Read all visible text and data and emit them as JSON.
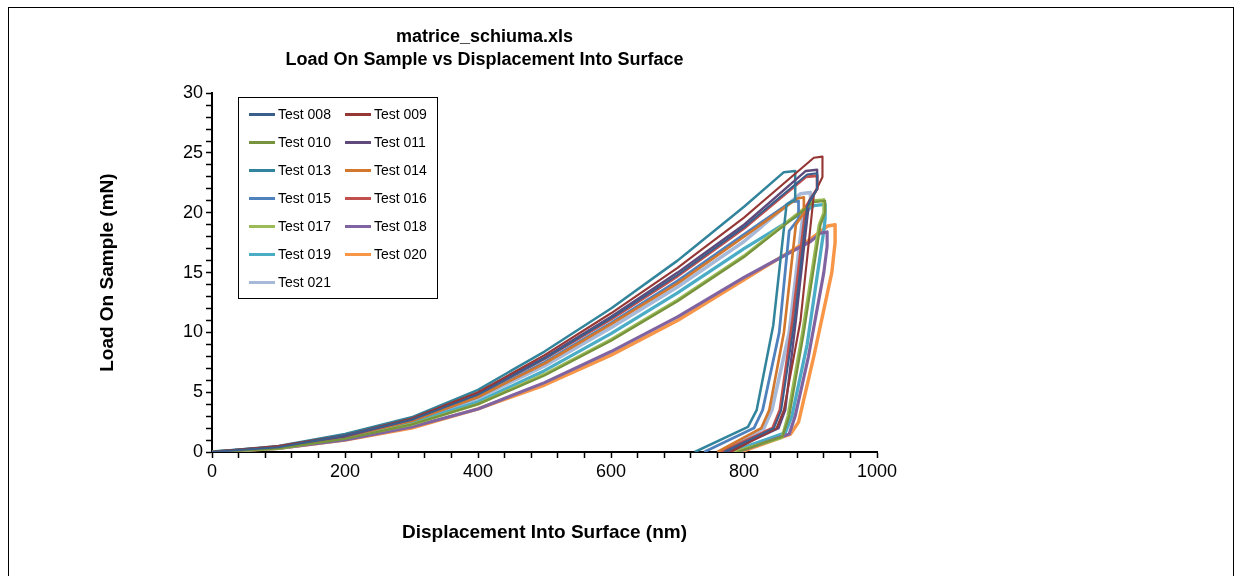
{
  "chart_data": {
    "type": "line",
    "title": "matrice_schiuma.xls",
    "subtitle": "Load On Sample vs Displacement Into Surface",
    "xlabel": "Displacement Into Surface (nm)",
    "ylabel": "Load On Sample (mN)",
    "xlim": [
      0,
      1000
    ],
    "ylim": [
      0,
      30
    ],
    "xticks": [
      0,
      {
        "value": 40,
        "label": null
      },
      {
        "value": 80,
        "label": null
      },
      {
        "value": 120,
        "label": null
      },
      {
        "value": 160,
        "label": null
      },
      200,
      {
        "value": 240,
        "label": null
      },
      {
        "value": 280,
        "label": null
      },
      {
        "value": 320,
        "label": null
      },
      {
        "value": 360,
        "label": null
      },
      400,
      {
        "value": 440,
        "label": null
      },
      {
        "value": 480,
        "label": null
      },
      {
        "value": 520,
        "label": null
      },
      {
        "value": 560,
        "label": null
      },
      600,
      {
        "value": 640,
        "label": null
      },
      {
        "value": 680,
        "label": null
      },
      {
        "value": 720,
        "label": null
      },
      {
        "value": 760,
        "label": null
      },
      800,
      {
        "value": 840,
        "label": null
      },
      {
        "value": 880,
        "label": null
      },
      {
        "value": 920,
        "label": null
      },
      {
        "value": 960,
        "label": null
      },
      1000
    ],
    "yticks": [
      0,
      {
        "value": 1,
        "label": null
      },
      {
        "value": 2,
        "label": null
      },
      {
        "value": 3,
        "label": null
      },
      {
        "value": 4,
        "label": null
      },
      5,
      {
        "value": 6,
        "label": null
      },
      {
        "value": 7,
        "label": null
      },
      {
        "value": 8,
        "label": null
      },
      {
        "value": 9,
        "label": null
      },
      10,
      {
        "value": 11,
        "label": null
      },
      {
        "value": 12,
        "label": null
      },
      {
        "value": 13,
        "label": null
      },
      {
        "value": 14,
        "label": null
      },
      15,
      {
        "value": 16,
        "label": null
      },
      {
        "value": 17,
        "label": null
      },
      {
        "value": 18,
        "label": null
      },
      {
        "value": 19,
        "label": null
      },
      20,
      {
        "value": 21,
        "label": null
      },
      {
        "value": 22,
        "label": null
      },
      {
        "value": 23,
        "label": null
      },
      {
        "value": 24,
        "label": null
      },
      25,
      {
        "value": 26,
        "label": null
      },
      {
        "value": 27,
        "label": null
      },
      {
        "value": 28,
        "label": null
      },
      {
        "value": 29,
        "label": null
      },
      30
    ],
    "grid": false,
    "legend": "top left",
    "marker": "none",
    "line_style": "solid",
    "series": [
      {
        "name": "Test 008",
        "color": "#3a5e8c",
        "x": [
          0,
          100,
          200,
          300,
          400,
          500,
          600,
          700,
          800,
          895,
          910,
          910,
          895,
          876,
          856,
          845,
          770
        ],
        "values": [
          0,
          0.4,
          1.4,
          2.7,
          4.8,
          7.8,
          11.2,
          14.8,
          18.8,
          23.2,
          23.3,
          22,
          20.5,
          11,
          3.5,
          2,
          0
        ]
      },
      {
        "name": "Test 009",
        "color": "#953735",
        "x": [
          0,
          100,
          200,
          300,
          400,
          500,
          600,
          700,
          800,
          905,
          918,
          918,
          905,
          885,
          860,
          849,
          780
        ],
        "values": [
          0,
          0.5,
          1.4,
          2.8,
          5,
          8.1,
          11.6,
          15.4,
          19.6,
          24.6,
          24.7,
          23,
          21.5,
          11,
          3.5,
          2,
          0
        ]
      },
      {
        "name": "Test 010",
        "color": "#77933c",
        "x": [
          0,
          100,
          200,
          300,
          400,
          500,
          600,
          700,
          800,
          905,
          922,
          922,
          915,
          890,
          868,
          858,
          790
        ],
        "values": [
          0,
          0.3,
          1.1,
          2.3,
          4,
          6.4,
          9.3,
          12.6,
          16.3,
          20.9,
          21,
          20,
          19,
          10,
          3,
          1.3,
          0
        ]
      },
      {
        "name": "Test 011",
        "color": "#604a7b",
        "x": [
          0,
          100,
          200,
          300,
          400,
          500,
          600,
          700,
          800,
          893,
          910,
          910,
          898,
          878,
          862,
          852,
          775
        ],
        "values": [
          0,
          0.4,
          1.3,
          2.7,
          4.9,
          7.9,
          11.3,
          15,
          19,
          23.5,
          23.6,
          22,
          21,
          11,
          3.5,
          2,
          0
        ]
      },
      {
        "name": "Test 013",
        "color": "#31849b",
        "x": [
          0,
          100,
          200,
          300,
          400,
          500,
          600,
          700,
          800,
          860,
          877,
          877,
          864,
          844,
          819,
          806,
          726
        ],
        "values": [
          0,
          0.5,
          1.5,
          2.9,
          5.2,
          8.4,
          12,
          16,
          20.5,
          23.4,
          23.5,
          21.1,
          20.7,
          10.6,
          3.5,
          2.1,
          0
        ]
      },
      {
        "name": "Test 014",
        "color": "#d2772e",
        "x": [
          0,
          100,
          200,
          300,
          400,
          500,
          600,
          700,
          800,
          880,
          890,
          890,
          878,
          860,
          838,
          826,
          760
        ],
        "values": [
          0,
          0.4,
          1.3,
          2.6,
          4.6,
          7.4,
          10.7,
          14.1,
          18,
          21.2,
          21.3,
          20,
          19,
          10,
          3.5,
          2,
          0
        ]
      },
      {
        "name": "Test 015",
        "color": "#4f81bd",
        "x": [
          0,
          100,
          200,
          300,
          400,
          500,
          600,
          700,
          800,
          870,
          882,
          882,
          868,
          853,
          828,
          815,
          740
        ],
        "values": [
          0,
          0.4,
          1.3,
          2.6,
          4.6,
          7.5,
          10.8,
          14.3,
          18.2,
          20.9,
          21,
          19.5,
          18.5,
          10,
          3.5,
          2,
          0
        ]
      },
      {
        "name": "Test 016",
        "color": "#c0504d",
        "x": [
          0,
          100,
          200,
          300,
          400,
          500,
          600,
          700,
          800,
          893,
          910,
          910,
          893,
          873,
          854,
          843,
          765
        ],
        "values": [
          0,
          0.4,
          1.3,
          2.7,
          4.8,
          7.8,
          11.1,
          14.7,
          18.7,
          23,
          23.1,
          22,
          20.5,
          11,
          3.5,
          2,
          0
        ]
      },
      {
        "name": "Test 017",
        "color": "#9bbb59",
        "x": [
          0,
          100,
          200,
          300,
          400,
          500,
          600,
          700,
          800,
          905,
          920,
          920,
          913,
          888,
          866,
          857,
          785
        ],
        "values": [
          0,
          0.3,
          1.2,
          2.3,
          4,
          6.5,
          9.4,
          12.7,
          16.4,
          21,
          21.1,
          20,
          19,
          10,
          3,
          1.2,
          0
        ]
      },
      {
        "name": "Test 018",
        "color": "#8064a2",
        "x": [
          0,
          100,
          200,
          300,
          400,
          500,
          600,
          700,
          800,
          900,
          915,
          925,
          925,
          920,
          897,
          877,
          868,
          790
        ],
        "values": [
          0,
          0.3,
          1,
          2.1,
          3.6,
          5.8,
          8.4,
          11.3,
          14.6,
          17.6,
          18.3,
          18.4,
          17.2,
          15,
          8,
          3,
          1.5,
          0
        ]
      },
      {
        "name": "Test 019",
        "color": "#4bacc6",
        "x": [
          0,
          100,
          200,
          300,
          400,
          500,
          600,
          700,
          800,
          905,
          922,
          922,
          920,
          895,
          872,
          862,
          780
        ],
        "values": [
          0,
          0.4,
          1.2,
          2.4,
          4.2,
          6.8,
          9.9,
          13.3,
          17,
          20.6,
          20.7,
          19.5,
          18.5,
          9,
          3,
          1.6,
          0
        ]
      },
      {
        "name": "Test 020",
        "color": "#f79646",
        "x": [
          0,
          100,
          200,
          300,
          400,
          500,
          600,
          700,
          800,
          900,
          926,
          937,
          937,
          932,
          905,
          882,
          870,
          795
        ],
        "values": [
          0,
          0.3,
          1,
          2,
          3.6,
          5.6,
          8.1,
          11,
          14.4,
          17.8,
          18.9,
          19,
          17.5,
          15,
          8,
          2.5,
          1.5,
          0
        ]
      },
      {
        "name": "Test 021",
        "color": "#a6b9d8",
        "x": [
          0,
          100,
          200,
          300,
          400,
          500,
          600,
          700,
          800,
          885,
          900,
          900,
          888,
          868,
          842,
          830,
          765
        ],
        "values": [
          0,
          0.4,
          1.2,
          2.5,
          4.5,
          7.2,
          10.4,
          13.8,
          17.6,
          21.6,
          21.7,
          20.5,
          19.5,
          10,
          3.5,
          2,
          0
        ]
      }
    ]
  }
}
